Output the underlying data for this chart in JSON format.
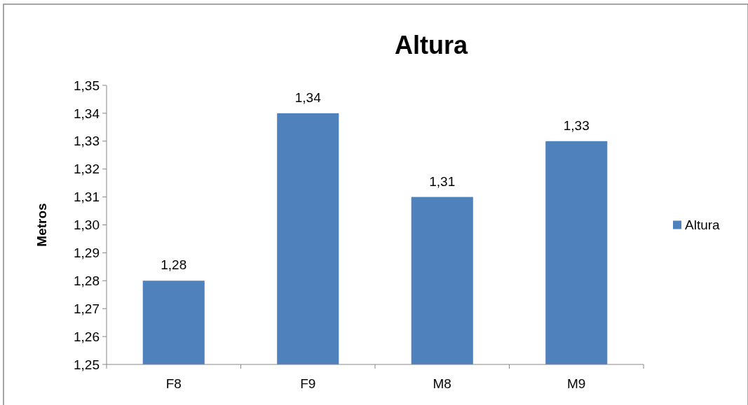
{
  "chart_data": {
    "type": "bar",
    "title": "Altura",
    "ylabel": "Metros",
    "categories": [
      "F8",
      "F9",
      "M8",
      "M9"
    ],
    "series": [
      {
        "name": "Altura",
        "color": "#4f81bd",
        "values": [
          1.28,
          1.34,
          1.31,
          1.33
        ],
        "value_labels": [
          "1,28",
          "1,34",
          "1,31",
          "1,33"
        ]
      }
    ],
    "ylim": [
      1.25,
      1.35
    ],
    "yticks": [
      {
        "value": 1.25,
        "label": "1,25"
      },
      {
        "value": 1.26,
        "label": "1,26"
      },
      {
        "value": 1.27,
        "label": "1,27"
      },
      {
        "value": 1.28,
        "label": "1,28"
      },
      {
        "value": 1.29,
        "label": "1,29"
      },
      {
        "value": 1.3,
        "label": "1,30"
      },
      {
        "value": 1.31,
        "label": "1,31"
      },
      {
        "value": 1.32,
        "label": "1,32"
      },
      {
        "value": 1.33,
        "label": "1,33"
      },
      {
        "value": 1.34,
        "label": "1,34"
      },
      {
        "value": 1.35,
        "label": "1,35"
      }
    ],
    "grid": false,
    "legend": "right"
  }
}
